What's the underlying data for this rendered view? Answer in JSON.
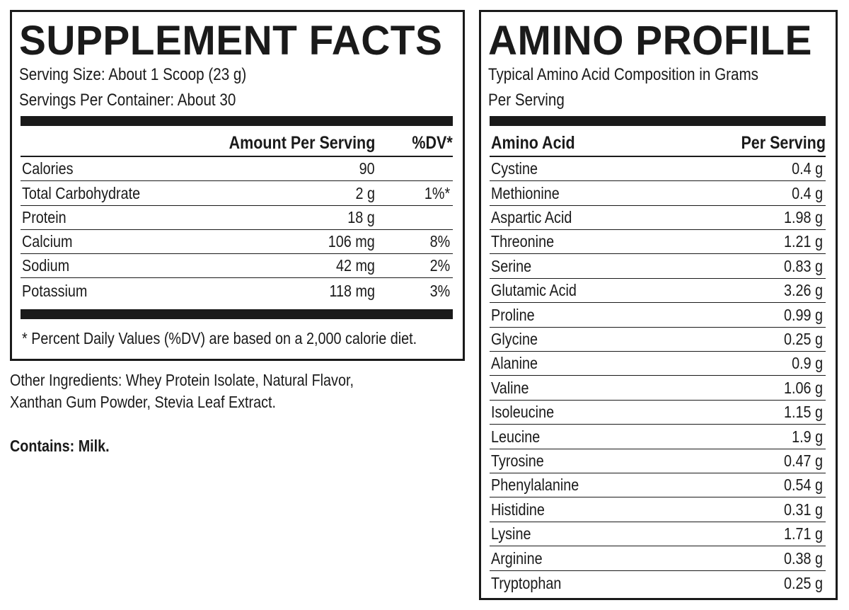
{
  "supplement_facts": {
    "title": "SUPPLEMENT FACTS",
    "serving_size": "Serving Size: About 1 Scoop (23 g)",
    "servings_per_container": "Servings Per Container: About 30",
    "header": {
      "amount": "Amount Per Serving",
      "dv": "%DV*"
    },
    "rows": [
      {
        "nutrient": "Calories",
        "amount": "90",
        "dv": ""
      },
      {
        "nutrient": "Total Carbohydrate",
        "amount": "2 g",
        "dv": "1%*"
      },
      {
        "nutrient": "Protein",
        "amount": "18 g",
        "dv": ""
      },
      {
        "nutrient": "Calcium",
        "amount": "106 mg",
        "dv": "8%"
      },
      {
        "nutrient": "Sodium",
        "amount": "42 mg",
        "dv": "2%"
      },
      {
        "nutrient": "Potassium",
        "amount": "118 mg",
        "dv": "3%"
      }
    ],
    "footnote": "* Percent Daily Values (%DV) are based on a 2,000 calorie diet."
  },
  "other_ingredients": {
    "line1": "Other Ingredients: Whey Protein Isolate, Natural Flavor,",
    "line2": "Xanthan Gum Powder, Stevia Leaf Extract."
  },
  "contains": "Contains: Milk.",
  "amino_profile": {
    "title": "AMINO PROFILE",
    "subtitle_line1": "Typical Amino Acid Composition in Grams",
    "subtitle_line2": "Per Serving",
    "header": {
      "acid": "Amino Acid",
      "amount": "Per Serving"
    },
    "rows": [
      {
        "acid": "Cystine",
        "amount": "0.4 g"
      },
      {
        "acid": "Methionine",
        "amount": "0.4 g"
      },
      {
        "acid": "Aspartic Acid",
        "amount": "1.98 g"
      },
      {
        "acid": "Threonine",
        "amount": "1.21 g"
      },
      {
        "acid": "Serine",
        "amount": "0.83 g"
      },
      {
        "acid": "Glutamic Acid",
        "amount": "3.26 g"
      },
      {
        "acid": "Proline",
        "amount": "0.99 g"
      },
      {
        "acid": "Glycine",
        "amount": "0.25 g"
      },
      {
        "acid": "Alanine",
        "amount": "0.9 g"
      },
      {
        "acid": "Valine",
        "amount": "1.06 g"
      },
      {
        "acid": "Isoleucine",
        "amount": "1.15 g"
      },
      {
        "acid": "Leucine",
        "amount": "1.9 g"
      },
      {
        "acid": "Tyrosine",
        "amount": "0.47 g"
      },
      {
        "acid": "Phenylalanine",
        "amount": "0.54 g"
      },
      {
        "acid": "Histidine",
        "amount": "0.31 g"
      },
      {
        "acid": "Lysine",
        "amount": "1.71 g"
      },
      {
        "acid": "Arginine",
        "amount": "0.38 g"
      },
      {
        "acid": "Tryptophan",
        "amount": "0.25 g"
      }
    ]
  }
}
